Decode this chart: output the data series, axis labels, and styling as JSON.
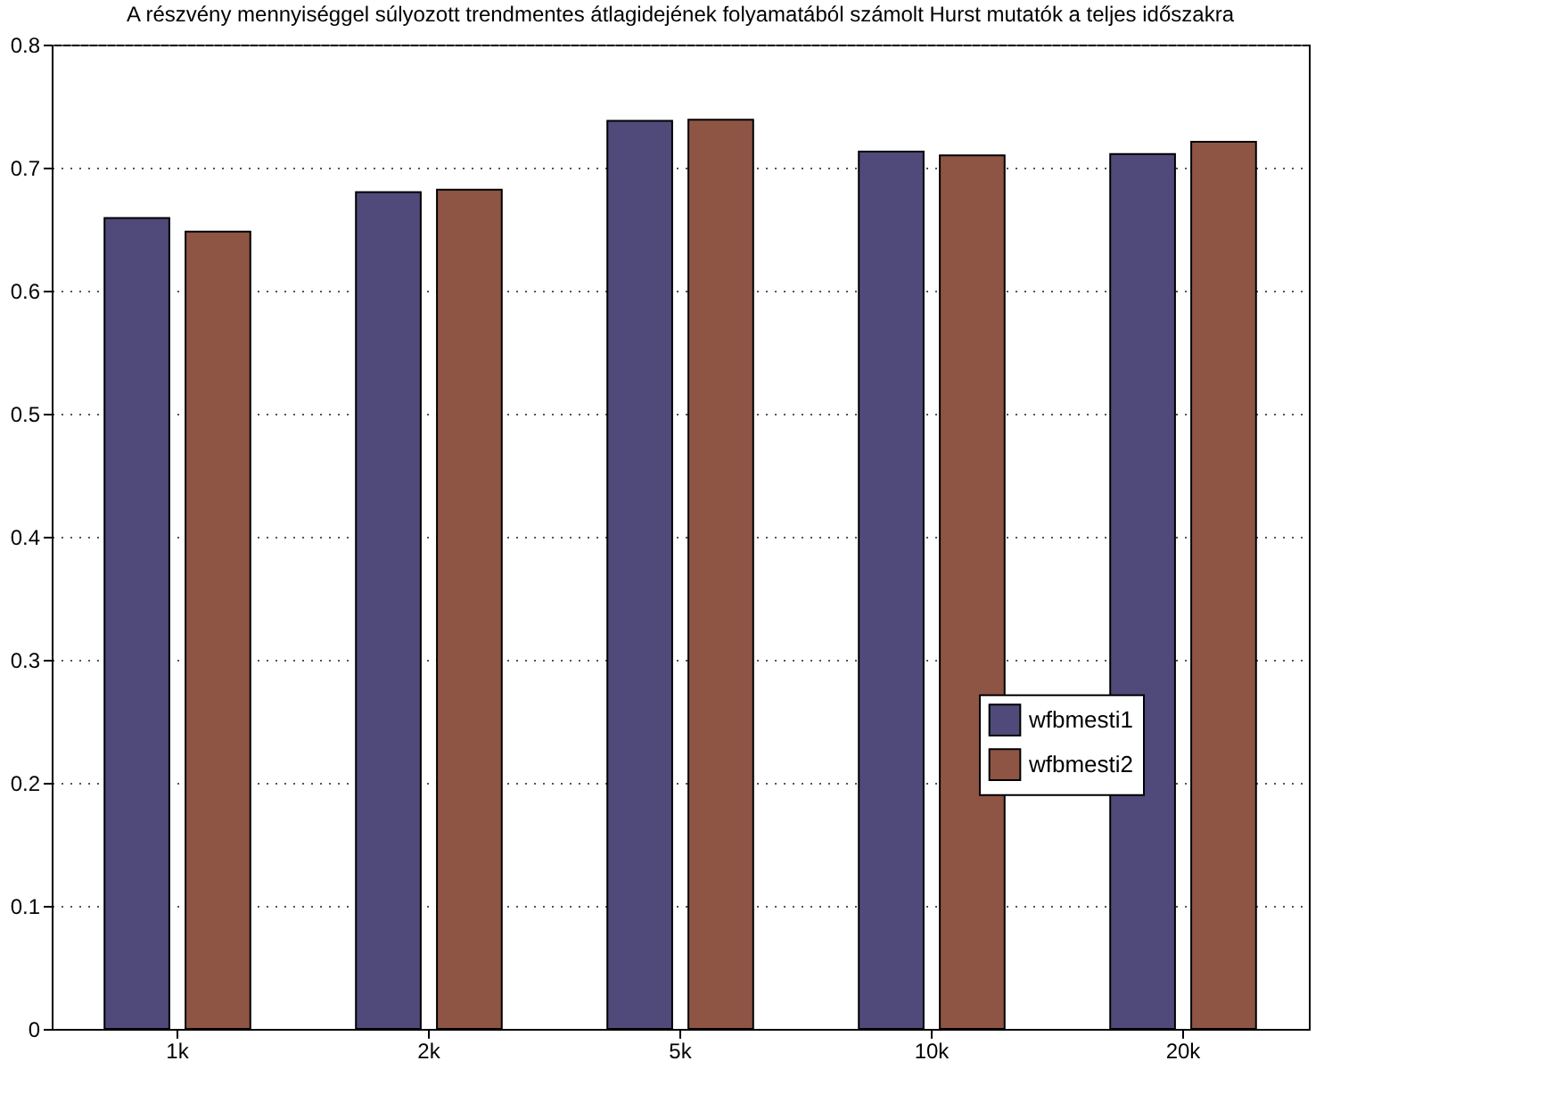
{
  "chart_data": {
    "type": "bar",
    "title": "A részvény mennyiséggel súlyozott trendmentes átlagidejének folyamatából számolt Hurst mutatók a teljes időszakra",
    "categories": [
      "1k",
      "2k",
      "5k",
      "10k",
      "20k"
    ],
    "series": [
      {
        "name": "wfbmesti1",
        "color": "#4f4a7a",
        "values": [
          0.659,
          0.68,
          0.738,
          0.713,
          0.711
        ]
      },
      {
        "name": "wfbmesti2",
        "color": "#8e5444",
        "values": [
          0.648,
          0.682,
          0.739,
          0.71,
          0.721
        ]
      }
    ],
    "ylim": [
      0,
      0.8
    ],
    "yticks": [
      0,
      0.1,
      0.2,
      0.3,
      0.4,
      0.5,
      0.6,
      0.7,
      0.8
    ],
    "grid": "y",
    "legend": "right"
  }
}
